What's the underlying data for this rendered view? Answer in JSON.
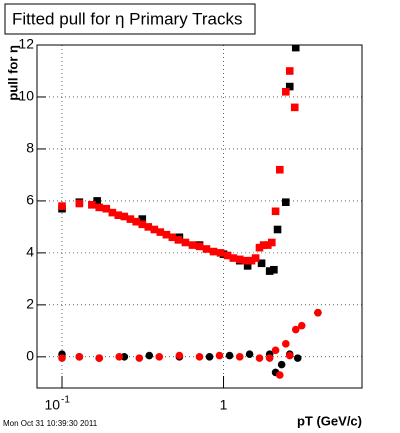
{
  "chart_data": {
    "type": "scatter",
    "title": "Fitted pull for η  Primary Tracks",
    "x_label": "pT (GeV/c)",
    "y_label": "pull for η",
    "timestamp": "Mon Oct 31 10:39:30 2011",
    "xscale": "log",
    "xlim": [
      0.07,
      7.2
    ],
    "ylim": [
      -1.2,
      12
    ],
    "xticks": [
      {
        "value": 0.1,
        "label": "10",
        "superscript": "-1"
      },
      1
    ],
    "yticks": [
      0,
      2,
      4,
      6,
      8,
      10,
      12
    ],
    "grid": true,
    "series": [
      {
        "color": "#000000",
        "marker": "square",
        "x": [
          0.1,
          0.128,
          0.165,
          0.314,
          0.533,
          0.71,
          1.0,
          1.26,
          1.41,
          1.72,
          1.93,
          2.05,
          2.16,
          2.43,
          2.57,
          2.8
        ],
        "values": [
          5.7,
          5.95,
          6.0,
          5.3,
          4.6,
          4.3,
          3.95,
          3.7,
          3.5,
          3.6,
          3.3,
          3.35,
          4.9,
          5.95,
          10.4,
          11.9
        ]
      },
      {
        "color": "#ff0000",
        "marker": "square",
        "x": [
          0.1,
          0.128,
          0.153,
          0.17,
          0.188,
          0.205,
          0.223,
          0.243,
          0.265,
          0.288,
          0.314,
          0.342,
          0.373,
          0.406,
          0.443,
          0.482,
          0.525,
          0.581,
          0.642,
          0.71,
          0.784,
          0.867,
          0.958,
          1.06,
          1.15,
          1.26,
          1.37,
          1.49,
          1.58,
          1.67,
          1.77,
          1.88,
          1.99,
          2.1,
          2.23,
          2.43,
          2.57,
          2.76
        ],
        "values": [
          5.8,
          5.9,
          5.85,
          5.75,
          5.7,
          5.55,
          5.45,
          5.4,
          5.3,
          5.2,
          5.1,
          5.0,
          4.9,
          4.8,
          4.7,
          4.6,
          4.5,
          4.4,
          4.3,
          4.25,
          4.15,
          4.05,
          4.0,
          3.9,
          3.8,
          3.75,
          3.7,
          3.7,
          3.8,
          4.2,
          4.3,
          4.3,
          4.4,
          5.6,
          7.2,
          10.2,
          11.0,
          9.6
        ]
      },
      {
        "color": "#000000",
        "marker": "circle",
        "x": [
          0.1,
          0.128,
          0.17,
          0.243,
          0.347,
          0.533,
          0.819,
          1.09,
          1.45,
          1.93,
          2.1,
          2.29,
          2.57,
          2.88,
          3.84
        ],
        "values": [
          0.1,
          0.0,
          -0.05,
          0.0,
          0.05,
          0.0,
          0.0,
          0.05,
          0.1,
          0.1,
          -0.6,
          -0.3,
          0.1,
          -0.05,
          1.7
        ]
      },
      {
        "color": "#ff0000",
        "marker": "circle",
        "x": [
          0.1,
          0.128,
          0.17,
          0.226,
          0.301,
          0.4,
          0.533,
          0.71,
          0.944,
          1.26,
          1.67,
          1.93,
          2.1,
          2.23,
          2.43,
          2.57,
          2.8,
          3.05,
          3.84
        ],
        "values": [
          -0.05,
          0.0,
          -0.05,
          0.0,
          -0.05,
          0.0,
          0.05,
          0.0,
          0.05,
          0.0,
          -0.05,
          -0.05,
          0.25,
          -0.7,
          0.5,
          0.05,
          1.05,
          1.2,
          1.7
        ]
      }
    ]
  }
}
